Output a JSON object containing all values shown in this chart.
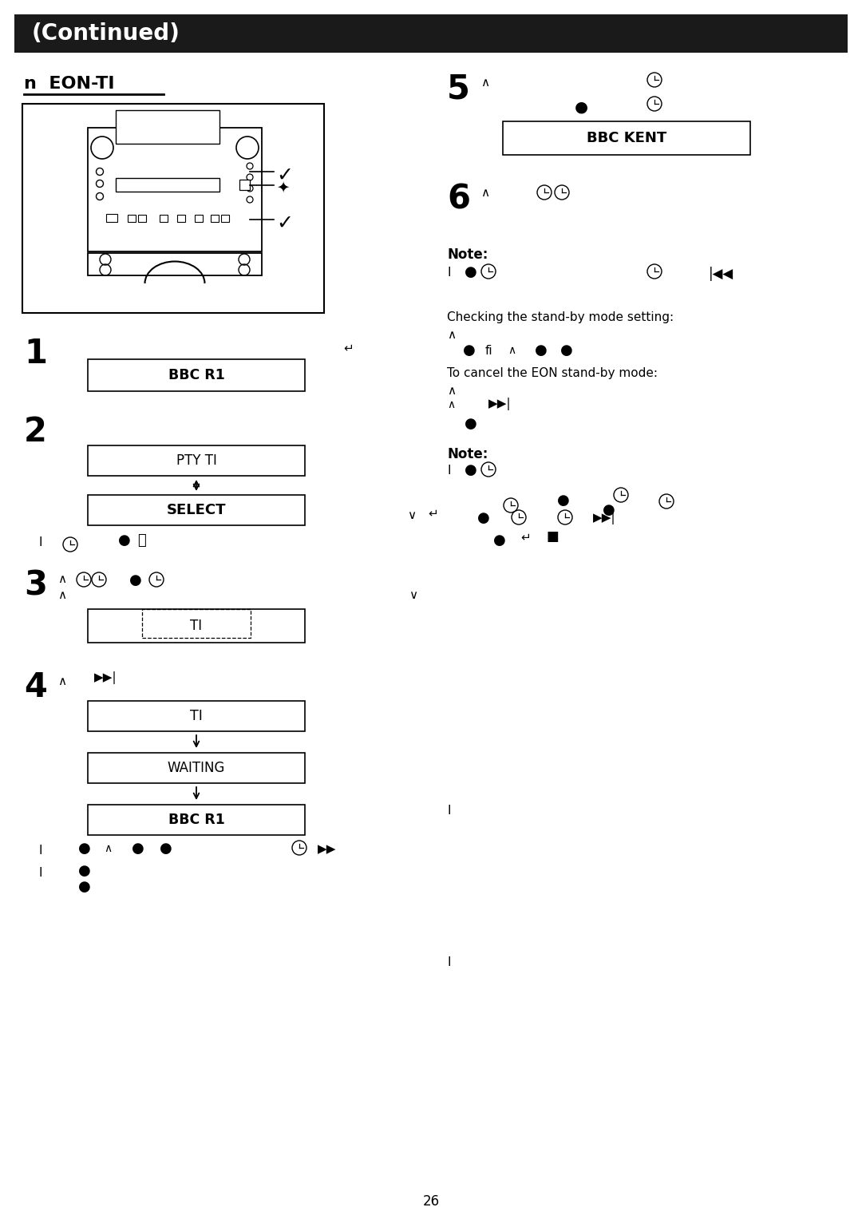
{
  "bg_color": "#ffffff",
  "header_bg": "#1a1a1a",
  "header_text": "(Continued)",
  "page_number": "26",
  "title": "n  EON-TI"
}
